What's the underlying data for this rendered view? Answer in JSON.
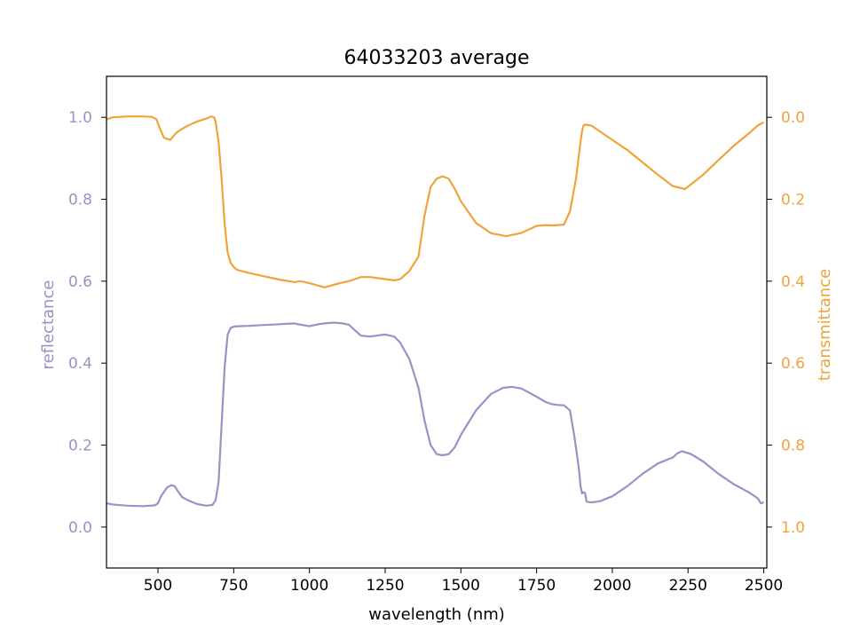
{
  "chart_data": {
    "type": "line",
    "title": "64033203 average",
    "xlabel": "wavelength (nm)",
    "ylabel_left": "reflectance",
    "ylabel_right": "transmittance",
    "xlim": [
      330,
      2510
    ],
    "ylim_left": [
      -0.1,
      1.1
    ],
    "ylim_right": [
      1.1,
      -0.1
    ],
    "right_axis_inverted": true,
    "grid": false,
    "x_ticks": [
      "500",
      "750",
      "1000",
      "1250",
      "1500",
      "1750",
      "2000",
      "2250",
      "2500"
    ],
    "y_ticks_left": [
      "0.0",
      "0.2",
      "0.4",
      "0.6",
      "0.8",
      "1.0"
    ],
    "y_ticks_right": [
      "0.0",
      "0.2",
      "0.4",
      "0.6",
      "0.8",
      "1.0"
    ],
    "colors": {
      "reflectance": "#9793c6",
      "transmittance": "#f0a33a",
      "axes": "#000000"
    },
    "series": [
      {
        "name": "reflectance",
        "axis": "left",
        "x": [
          330,
          350,
          400,
          450,
          490,
          500,
          510,
          530,
          545,
          555,
          565,
          580,
          600,
          630,
          660,
          680,
          690,
          700,
          710,
          720,
          730,
          740,
          750,
          760,
          800,
          850,
          900,
          950,
          970,
          1000,
          1030,
          1050,
          1080,
          1110,
          1130,
          1150,
          1170,
          1200,
          1250,
          1280,
          1300,
          1330,
          1360,
          1380,
          1400,
          1420,
          1440,
          1460,
          1480,
          1500,
          1550,
          1600,
          1640,
          1670,
          1700,
          1750,
          1780,
          1800,
          1820,
          1840,
          1860,
          1875,
          1890,
          1895,
          1900,
          1905,
          1910,
          1915,
          1930,
          1960,
          2000,
          2050,
          2100,
          2150,
          2200,
          2215,
          2230,
          2260,
          2300,
          2350,
          2400,
          2450,
          2480,
          2490,
          2500
        ],
        "y": [
          0.058,
          0.055,
          0.052,
          0.051,
          0.053,
          0.058,
          0.075,
          0.097,
          0.102,
          0.1,
          0.088,
          0.073,
          0.065,
          0.056,
          0.052,
          0.054,
          0.065,
          0.11,
          0.25,
          0.39,
          0.47,
          0.486,
          0.489,
          0.49,
          0.491,
          0.493,
          0.495,
          0.497,
          0.494,
          0.49,
          0.495,
          0.497,
          0.499,
          0.497,
          0.494,
          0.48,
          0.467,
          0.465,
          0.47,
          0.465,
          0.45,
          0.41,
          0.34,
          0.26,
          0.2,
          0.178,
          0.175,
          0.178,
          0.195,
          0.225,
          0.285,
          0.325,
          0.34,
          0.342,
          0.338,
          0.318,
          0.305,
          0.3,
          0.298,
          0.297,
          0.285,
          0.22,
          0.14,
          0.1,
          0.082,
          0.085,
          0.083,
          0.062,
          0.06,
          0.063,
          0.075,
          0.1,
          0.13,
          0.155,
          0.17,
          0.18,
          0.185,
          0.178,
          0.16,
          0.13,
          0.105,
          0.085,
          0.07,
          0.058,
          0.06
        ]
      },
      {
        "name": "transmittance",
        "axis": "right",
        "x": [
          330,
          350,
          400,
          450,
          480,
          495,
          505,
          520,
          540,
          550,
          560,
          580,
          600,
          630,
          660,
          675,
          685,
          690,
          700,
          710,
          720,
          730,
          740,
          750,
          760,
          800,
          850,
          900,
          950,
          970,
          1000,
          1050,
          1100,
          1130,
          1150,
          1170,
          1200,
          1250,
          1280,
          1300,
          1330,
          1360,
          1380,
          1400,
          1420,
          1440,
          1460,
          1480,
          1500,
          1550,
          1600,
          1650,
          1700,
          1750,
          1780,
          1800,
          1820,
          1840,
          1860,
          1880,
          1895,
          1900,
          1905,
          1910,
          1930,
          1950,
          2000,
          2050,
          2100,
          2150,
          2200,
          2240,
          2300,
          2350,
          2400,
          2450,
          2480,
          2500
        ],
        "y": [
          0.005,
          0.0,
          -0.002,
          -0.002,
          -0.001,
          0.005,
          0.025,
          0.05,
          0.055,
          0.047,
          0.038,
          0.028,
          0.02,
          0.01,
          0.003,
          -0.002,
          0.0,
          0.01,
          0.06,
          0.15,
          0.26,
          0.33,
          0.355,
          0.365,
          0.372,
          0.38,
          0.388,
          0.396,
          0.402,
          0.4,
          0.405,
          0.415,
          0.405,
          0.4,
          0.395,
          0.39,
          0.39,
          0.395,
          0.398,
          0.395,
          0.375,
          0.34,
          0.24,
          0.17,
          0.15,
          0.144,
          0.15,
          0.175,
          0.205,
          0.258,
          0.283,
          0.29,
          0.282,
          0.265,
          0.263,
          0.264,
          0.263,
          0.262,
          0.23,
          0.15,
          0.06,
          0.035,
          0.02,
          0.018,
          0.02,
          0.03,
          0.055,
          0.08,
          0.11,
          0.14,
          0.168,
          0.175,
          0.14,
          0.105,
          0.07,
          0.04,
          0.02,
          0.012
        ]
      }
    ]
  }
}
